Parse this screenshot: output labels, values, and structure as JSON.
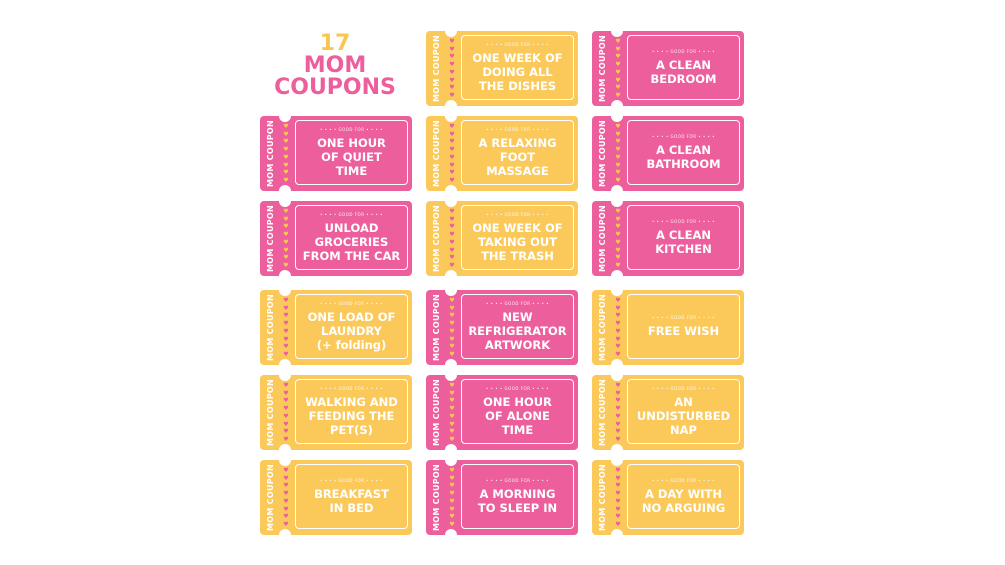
{
  "title": {
    "number": "17",
    "line1": "MOM",
    "line2": "COUPONS"
  },
  "colors": {
    "pink": "#ec5f9c",
    "yellow": "#fbc95a"
  },
  "stub_label": "MOM COUPON",
  "good_for": "• • • • GOOD FOR • • • •",
  "heart_icon": "♥",
  "coupons": [
    {
      "text": "ONE WEEK OF\nDOING ALL\nTHE DISHES",
      "color": "yellow",
      "row": 0,
      "col": 1
    },
    {
      "text": "A CLEAN\nBEDROOM",
      "color": "pink",
      "row": 0,
      "col": 2
    },
    {
      "text": "ONE HOUR\nOF QUIET\nTIME",
      "color": "pink",
      "row": 1,
      "col": 0
    },
    {
      "text": "A RELAXING\nFOOT\nMASSAGE",
      "color": "yellow",
      "row": 1,
      "col": 1
    },
    {
      "text": "A CLEAN\nBATHROOM",
      "color": "pink",
      "row": 1,
      "col": 2
    },
    {
      "text": "UNLOAD\nGROCERIES\nFROM THE CAR",
      "color": "pink",
      "row": 2,
      "col": 0
    },
    {
      "text": "ONE WEEK OF\nTAKING OUT\nTHE TRASH",
      "color": "yellow",
      "row": 2,
      "col": 1
    },
    {
      "text": "A CLEAN\nKITCHEN",
      "color": "pink",
      "row": 2,
      "col": 2
    },
    {
      "text": "ONE LOAD OF\nLAUNDRY\n(+ folding)",
      "color": "yellow",
      "row": 3,
      "col": 0
    },
    {
      "text": "NEW\nREFRIGERATOR\nARTWORK",
      "color": "pink",
      "row": 3,
      "col": 1
    },
    {
      "text": "FREE WISH",
      "color": "yellow",
      "row": 3,
      "col": 2
    },
    {
      "text": "WALKING AND\nFEEDING THE\nPET(S)",
      "color": "yellow",
      "row": 4,
      "col": 0
    },
    {
      "text": "ONE HOUR\nOF ALONE\nTIME",
      "color": "pink",
      "row": 4,
      "col": 1
    },
    {
      "text": "AN\nUNDISTURBED\nNAP",
      "color": "yellow",
      "row": 4,
      "col": 2
    },
    {
      "text": "BREAKFAST\nIN BED",
      "color": "yellow",
      "row": 5,
      "col": 0
    },
    {
      "text": "A MORNING\nTO SLEEP IN",
      "color": "pink",
      "row": 5,
      "col": 1
    },
    {
      "text": "A DAY WITH\nNO ARGUING",
      "color": "yellow",
      "row": 5,
      "col": 2
    }
  ]
}
